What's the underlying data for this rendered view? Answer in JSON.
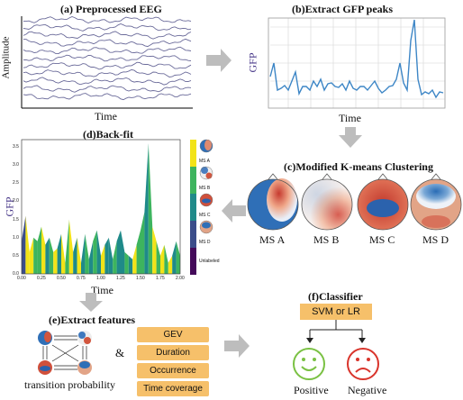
{
  "panel_a": {
    "title": "(a) Preprocessed EEG",
    "ylabel": "Amplitude",
    "xlabel": "Time"
  },
  "panel_b": {
    "title": "(b)Extract GFP peaks",
    "ylabel": "GFP",
    "xlabel": "Time"
  },
  "panel_c": {
    "title": "(c)Modified K-means Clustering",
    "maps": [
      "MS A",
      "MS B",
      "MS C",
      "MS D"
    ]
  },
  "panel_d": {
    "title": "(d)Back-fit",
    "ylabel": "GFP",
    "xlabel": "Time",
    "x_ticks": [
      "0.00",
      "0.25",
      "0.50",
      "0.75",
      "1.00",
      "1.25",
      "1.50",
      "1.75",
      "2.00"
    ],
    "y_ticks": [
      "0.0",
      "0.5",
      "1.0",
      "1.5",
      "2.0",
      "2.5",
      "3.0",
      "3.5"
    ],
    "legend": [
      "MS A",
      "MS B",
      "MS C",
      "MS D",
      "Unlabeled"
    ]
  },
  "panel_e": {
    "title": "(e)Extract features",
    "caption": "transition probability",
    "ampersand": "&",
    "features": [
      "GEV",
      "Duration",
      "Occurrence",
      "Time coverage"
    ]
  },
  "panel_f": {
    "title": "(f)Classifier",
    "classifier": "SVM or LR",
    "outcomes": [
      "Positive",
      "Negative"
    ]
  },
  "colors": {
    "ms_a": "#f2e318",
    "ms_b": "#3db45e",
    "ms_c": "#1f8a89",
    "ms_d": "#3b4d8a",
    "unlabeled": "#440a5a",
    "arrow": "#bdbdbd",
    "feature_box": "#f6c06a",
    "positive": "#7ac143",
    "negative": "#d9342b",
    "gfp_line": "#3d86c6"
  },
  "chart_data": [
    {
      "type": "line",
      "title": "(d)Back-fit",
      "xlabel": "Time",
      "ylabel": "GFP",
      "xlim": [
        0,
        2
      ],
      "ylim": [
        0,
        3.7
      ],
      "x": [
        0.0,
        0.05,
        0.1,
        0.15,
        0.2,
        0.25,
        0.3,
        0.35,
        0.4,
        0.45,
        0.5,
        0.55,
        0.6,
        0.65,
        0.7,
        0.75,
        0.8,
        0.85,
        0.9,
        0.95,
        1.0,
        1.05,
        1.1,
        1.15,
        1.2,
        1.25,
        1.3,
        1.35,
        1.4,
        1.45,
        1.5,
        1.55,
        1.6,
        1.65,
        1.7,
        1.75,
        1.8,
        1.85,
        1.9,
        1.95,
        2.0
      ],
      "values": [
        0.9,
        1.6,
        0.6,
        1.0,
        0.9,
        1.3,
        0.8,
        1.0,
        0.6,
        0.7,
        1.1,
        0.3,
        1.5,
        0.6,
        1.0,
        0.3,
        1.1,
        0.4,
        0.9,
        1.2,
        0.5,
        0.8,
        1.0,
        0.4,
        0.9,
        1.2,
        0.6,
        0.5,
        0.4,
        0.8,
        1.2,
        1.7,
        3.6,
        1.3,
        0.9,
        0.5,
        0.8,
        0.3,
        0.5,
        0.9,
        0.5
      ],
      "labels": [
        "D",
        "A",
        "A",
        "B",
        "B",
        "A",
        "C",
        "B",
        "A",
        "C",
        "A",
        "B",
        "A",
        "C",
        "A",
        "C",
        "B",
        "C",
        "B",
        "C",
        "A",
        "C",
        "C",
        "B",
        "C",
        "C",
        "B",
        "C",
        "A",
        "B",
        "B",
        "C",
        "B",
        "A",
        "B",
        "A",
        "B",
        "A",
        "C",
        "B",
        "C"
      ],
      "legend": [
        "MS A",
        "MS B",
        "MS C",
        "MS D",
        "Unlabeled"
      ]
    }
  ]
}
